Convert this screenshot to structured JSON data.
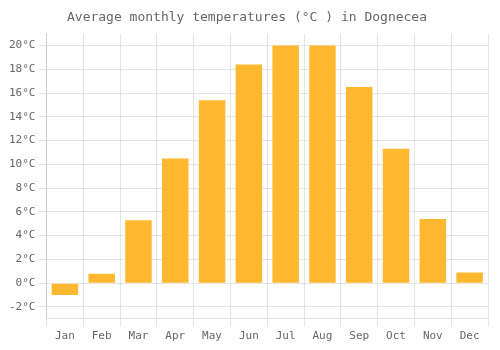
{
  "chart_data": {
    "type": "bar",
    "title": "Average monthly temperatures (°C ) in Dognecea",
    "categories": [
      "Jan",
      "Feb",
      "Mar",
      "Apr",
      "May",
      "Jun",
      "Jul",
      "Aug",
      "Sep",
      "Oct",
      "Nov",
      "Dec"
    ],
    "values": [
      -1.0,
      0.8,
      5.3,
      10.5,
      15.4,
      18.4,
      20.0,
      20.0,
      16.5,
      11.3,
      5.4,
      0.9
    ],
    "color": "#FFB830",
    "ylim": [
      -3,
      21
    ],
    "yticks": [
      {
        "value": -2,
        "label": "-2°C"
      },
      {
        "value": 0,
        "label": "0°C"
      },
      {
        "value": 2,
        "label": "2°C"
      },
      {
        "value": 4,
        "label": "4°C"
      },
      {
        "value": 6,
        "label": "6°C"
      },
      {
        "value": 8,
        "label": "8°C"
      },
      {
        "value": 10,
        "label": "10°C"
      },
      {
        "value": 12,
        "label": "12°C"
      },
      {
        "value": 14,
        "label": "14°C"
      },
      {
        "value": 16,
        "label": "16°C"
      },
      {
        "value": 18,
        "label": "18°C"
      },
      {
        "value": 20,
        "label": "20°C"
      }
    ],
    "grid": true
  }
}
